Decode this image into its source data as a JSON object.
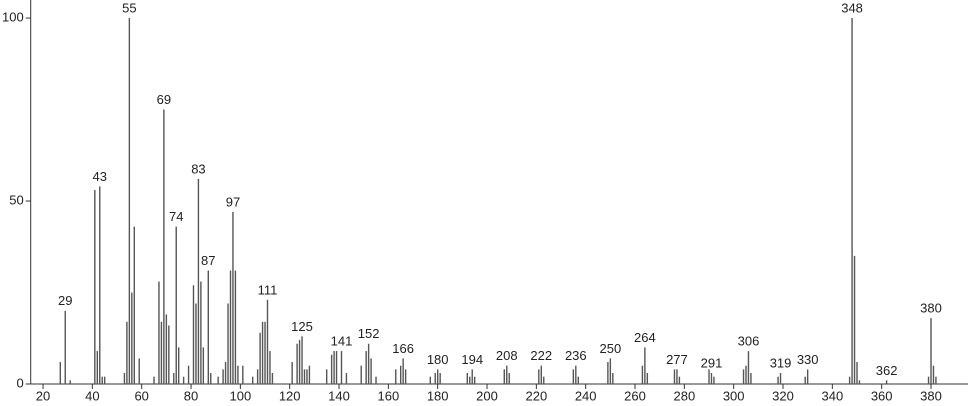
{
  "chart_data": {
    "type": "spectrum",
    "x": [
      27,
      29,
      31,
      41,
      42,
      43,
      44,
      45,
      53,
      54,
      55,
      56,
      57,
      59,
      65,
      67,
      68,
      69,
      70,
      71,
      73,
      74,
      75,
      77,
      79,
      81,
      82,
      83,
      84,
      85,
      87,
      88,
      91,
      93,
      94,
      95,
      96,
      97,
      98,
      99,
      101,
      105,
      107,
      108,
      109,
      110,
      111,
      112,
      113,
      121,
      123,
      124,
      125,
      126,
      127,
      128,
      135,
      137,
      138,
      139,
      141,
      143,
      149,
      151,
      152,
      153,
      155,
      163,
      165,
      166,
      167,
      177,
      179,
      180,
      181,
      192,
      193,
      194,
      195,
      207,
      208,
      209,
      221,
      222,
      223,
      235,
      236,
      237,
      249,
      250,
      251,
      263,
      264,
      265,
      276,
      277,
      278,
      290,
      291,
      292,
      304,
      305,
      306,
      307,
      318,
      319,
      329,
      330,
      347,
      348,
      349,
      350,
      351,
      362,
      379,
      380,
      381,
      382
    ],
    "values": [
      6,
      20,
      1,
      53,
      9,
      54,
      2,
      2,
      3,
      17,
      100,
      25,
      43,
      7,
      2,
      28,
      17,
      75,
      19,
      16,
      3,
      43,
      10,
      2,
      5,
      27,
      22,
      56,
      28,
      10,
      31,
      3,
      2,
      4,
      6,
      22,
      31,
      47,
      31,
      5,
      5,
      2,
      4,
      14,
      17,
      17,
      23,
      9,
      3,
      6,
      11,
      12,
      13,
      4,
      4,
      5,
      4,
      8,
      9,
      9,
      9,
      3,
      5,
      9,
      11,
      7,
      2,
      4,
      5,
      7,
      4,
      2,
      3,
      4,
      3,
      3,
      2,
      4,
      2,
      4,
      5,
      3,
      4,
      5,
      2,
      4,
      5,
      2,
      6,
      7,
      3,
      5,
      10,
      3,
      4,
      4,
      2,
      4,
      3,
      2,
      4,
      5,
      9,
      3,
      2,
      3,
      2,
      4,
      2,
      100,
      35,
      6,
      1,
      1,
      2,
      18,
      5,
      2
    ],
    "annotations": [
      29,
      43,
      55,
      69,
      74,
      83,
      87,
      97,
      111,
      125,
      141,
      152,
      166,
      180,
      194,
      208,
      222,
      236,
      250,
      264,
      277,
      291,
      306,
      319,
      330,
      348,
      362,
      380
    ],
    "color": "#555555",
    "xlim": [
      15,
      395
    ],
    "ylim": [
      0,
      104
    ],
    "xticks": [
      20,
      40,
      60,
      80,
      100,
      120,
      140,
      160,
      180,
      200,
      220,
      240,
      260,
      280,
      300,
      320,
      340,
      360,
      380
    ],
    "yticks": [
      0,
      50,
      100
    ]
  }
}
